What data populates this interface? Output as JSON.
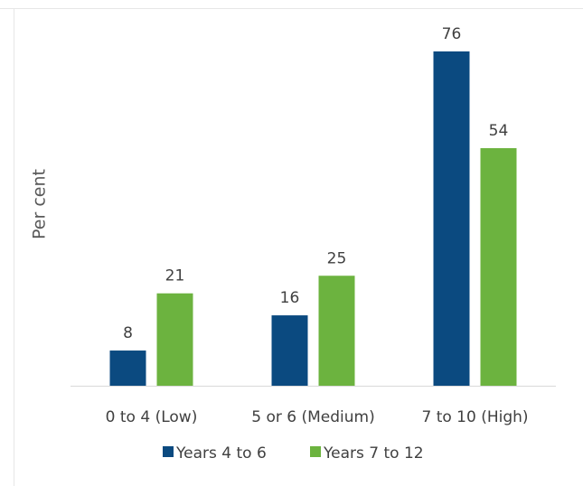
{
  "chart_data": {
    "type": "bar",
    "ylabel": "Per cent",
    "xlabel": "",
    "categories": [
      "0 to 4 (Low)",
      "5 or 6 (Medium)",
      "7 to 10 (High)"
    ],
    "series": [
      {
        "name": "Years 4 to 6",
        "values": [
          8,
          16,
          76
        ],
        "color": "#0b4a80"
      },
      {
        "name": "Years 7 to 12",
        "values": [
          21,
          25,
          54
        ],
        "color": "#6cb33f"
      }
    ],
    "ylim": [
      0,
      80
    ],
    "grid": false,
    "data_labels": true,
    "legend_position": "bottom"
  }
}
